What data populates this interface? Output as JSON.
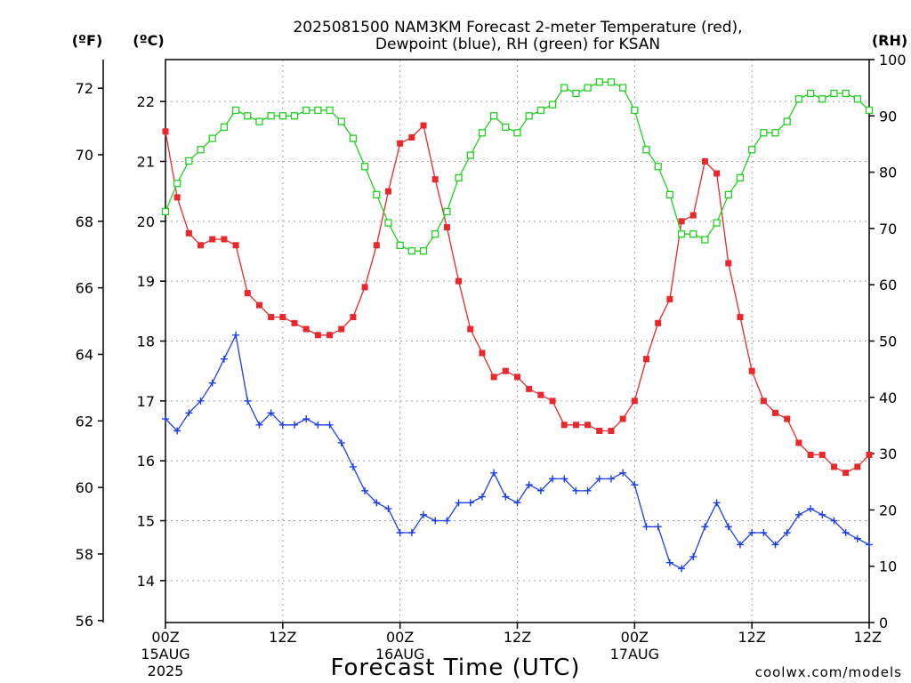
{
  "chart_data": {
    "type": "line",
    "title_line1": "2025081500 NAM3KM Forecast 2-meter Temperature (red),",
    "title_line2": "Dewpoint (blue), RH (green) for KSAN",
    "xlabel": "Forecast Time (UTC)",
    "credit": "coolwx.com/models",
    "units": {
      "fahrenheit": "(ºF)",
      "celsius": "(ºC)",
      "rh": "(RH)"
    },
    "x_range_hours": [
      0,
      72
    ],
    "celsius_range": [
      13.3,
      22.7
    ],
    "rh_range": [
      0,
      100
    ],
    "x_ticks": [
      {
        "hour": 0,
        "time": "00Z",
        "date": "15AUG",
        "year": "2025"
      },
      {
        "hour": 12,
        "time": "12Z",
        "date": "",
        "year": ""
      },
      {
        "hour": 24,
        "time": "00Z",
        "date": "16AUG",
        "year": ""
      },
      {
        "hour": 36,
        "time": "12Z",
        "date": "",
        "year": ""
      },
      {
        "hour": 48,
        "time": "00Z",
        "date": "17AUG",
        "year": ""
      },
      {
        "hour": 60,
        "time": "12Z",
        "date": "",
        "year": ""
      }
    ],
    "fahrenheit_ticks": [
      56,
      58,
      60,
      62,
      64,
      66,
      68,
      70,
      72
    ],
    "celsius_ticks": [
      14,
      15,
      16,
      17,
      18,
      19,
      20,
      21,
      22
    ],
    "rh_ticks": [
      0,
      10,
      20,
      30,
      40,
      50,
      60,
      70,
      80,
      90,
      100
    ],
    "grid": true,
    "colors": {
      "temperature": "#e8282d",
      "dewpoint": "#1f3ee8",
      "rh": "#22d022",
      "grid": "#a0a0a0",
      "credit": "#cc2222"
    },
    "series": [
      {
        "name": "Temperature",
        "axis": "celsius",
        "values": [
          21.5,
          20.4,
          19.8,
          19.6,
          19.7,
          19.7,
          19.6,
          18.8,
          18.6,
          18.4,
          18.4,
          18.3,
          18.2,
          18.1,
          18.1,
          18.2,
          18.4,
          18.9,
          19.6,
          20.5,
          21.3,
          21.4,
          21.6,
          20.7,
          19.9,
          19.0,
          18.2,
          17.8,
          17.4,
          17.5,
          17.4,
          17.2,
          17.1,
          17.0,
          16.6,
          16.6,
          16.6,
          16.5,
          16.5,
          16.7,
          17.0,
          17.7,
          18.3,
          18.7,
          20.0,
          20.1,
          21.0,
          20.8,
          19.3,
          18.4,
          17.5,
          17.0,
          16.8,
          16.7,
          16.3,
          16.1,
          16.1,
          15.9,
          15.8,
          15.9,
          16.1
        ]
      },
      {
        "name": "Dewpoint",
        "axis": "celsius",
        "values": [
          16.7,
          16.5,
          16.8,
          17.0,
          17.3,
          17.7,
          18.1,
          17.0,
          16.6,
          16.8,
          16.6,
          16.6,
          16.7,
          16.6,
          16.6,
          16.3,
          15.9,
          15.5,
          15.3,
          15.2,
          14.8,
          14.8,
          15.1,
          15.0,
          15.0,
          15.3,
          15.3,
          15.4,
          15.8,
          15.4,
          15.3,
          15.6,
          15.5,
          15.7,
          15.7,
          15.5,
          15.5,
          15.7,
          15.7,
          15.8,
          15.6,
          14.9,
          14.9,
          14.3,
          14.2,
          14.4,
          14.9,
          15.3,
          14.9,
          14.6,
          14.8,
          14.8,
          14.6,
          14.8,
          15.1,
          15.2,
          15.1,
          15.0,
          14.8,
          14.7,
          14.6
        ]
      },
      {
        "name": "RH",
        "axis": "rh",
        "values": [
          73,
          78,
          82,
          84,
          86,
          88,
          91,
          90,
          89,
          90,
          90,
          90,
          91,
          91,
          91,
          89,
          86,
          81,
          76,
          71,
          67,
          66,
          66,
          69,
          73,
          79,
          83,
          87,
          90,
          88,
          87,
          90,
          91,
          92,
          95,
          94,
          95,
          96,
          96,
          95,
          91,
          84,
          81,
          76,
          69,
          69,
          68,
          71,
          76,
          79,
          84,
          87,
          87,
          89,
          93,
          94,
          93,
          94,
          94,
          93,
          91
        ]
      }
    ]
  }
}
